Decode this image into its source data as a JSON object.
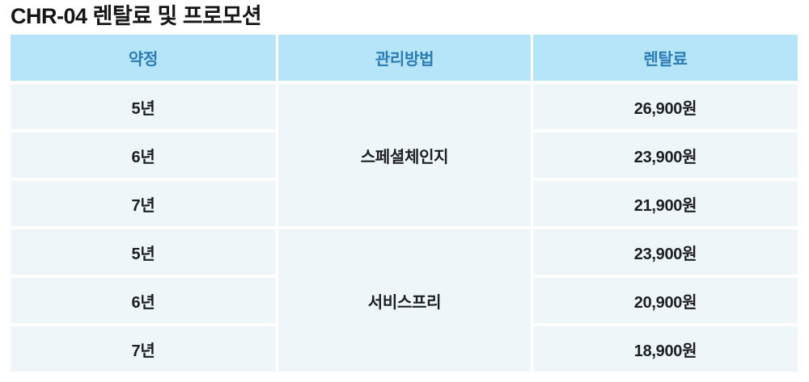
{
  "title": "CHR-04 렌탈료 및 프로모션",
  "colors": {
    "header_bg": "#b6e5f9",
    "header_text": "#2b7cb4",
    "cell_bg": "#eef6fa",
    "body_text": "#1d1f22",
    "page_bg": "#ffffff"
  },
  "table": {
    "headers": {
      "term": "약정",
      "method": "관리방법",
      "price": "렌탈료"
    },
    "groups": [
      {
        "method": "스페셜체인지",
        "rows": [
          {
            "term": "5년",
            "price": "26,900원"
          },
          {
            "term": "6년",
            "price": "23,900원"
          },
          {
            "term": "7년",
            "price": "21,900원"
          }
        ]
      },
      {
        "method": "서비스프리",
        "rows": [
          {
            "term": "5년",
            "price": "23,900원"
          },
          {
            "term": "6년",
            "price": "20,900원"
          },
          {
            "term": "7년",
            "price": "18,900원"
          }
        ]
      }
    ]
  },
  "chart_data": {
    "type": "table",
    "title": "CHR-04 렌탈료 및 프로모션",
    "columns": [
      "약정",
      "관리방법",
      "렌탈료"
    ],
    "rows": [
      [
        "5년",
        "스페셜체인지",
        "26,900원"
      ],
      [
        "6년",
        "스페셜체인지",
        "23,900원"
      ],
      [
        "7년",
        "스페셜체인지",
        "21,900원"
      ],
      [
        "5년",
        "서비스프리",
        "23,900원"
      ],
      [
        "6년",
        "서비스프리",
        "20,900원"
      ],
      [
        "7년",
        "서비스프리",
        "18,900원"
      ]
    ]
  }
}
